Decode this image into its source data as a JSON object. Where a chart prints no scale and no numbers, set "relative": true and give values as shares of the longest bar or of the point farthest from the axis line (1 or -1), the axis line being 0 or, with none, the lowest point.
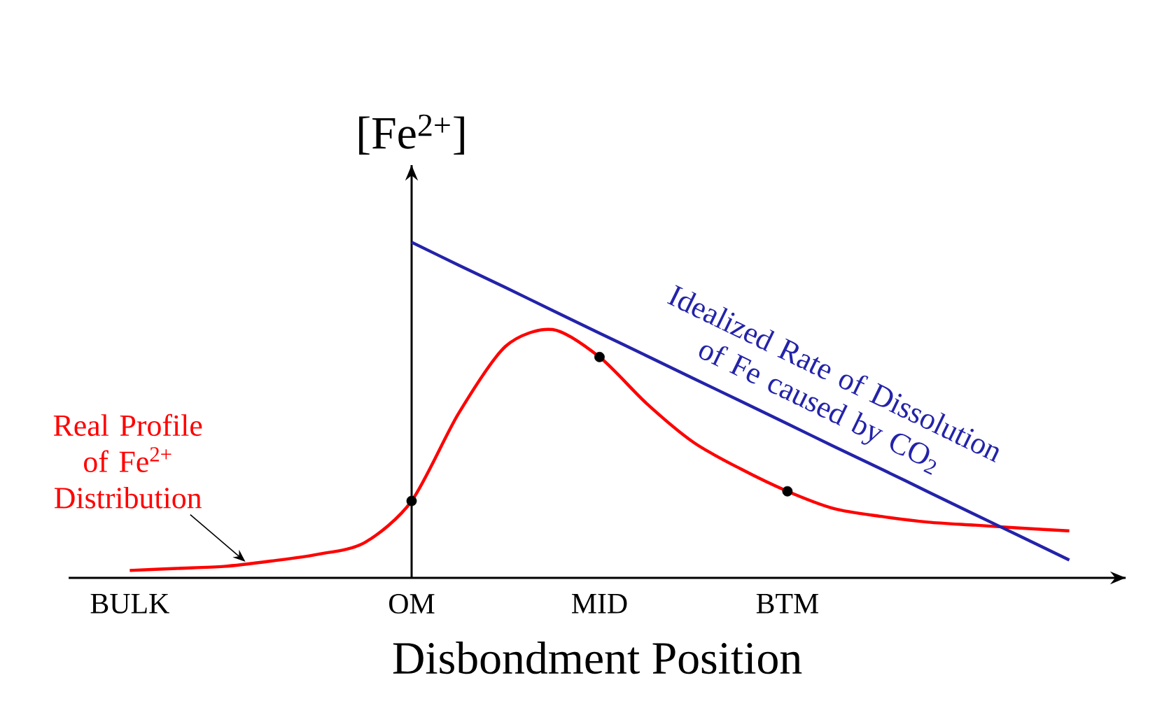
{
  "chart_data": {
    "type": "line",
    "relative": true,
    "xlabel": "Disbondment Position",
    "ylabel": "[Fe$^{2+}$]",
    "tick_labels": "x",
    "marker": "none",
    "line_style": "solid",
    "categories": [
      "BULK",
      null,
      null,
      null,
      null,
      null,
      "OM",
      null,
      null,
      null,
      "MID",
      null,
      null,
      null,
      "BTM",
      null,
      null,
      null,
      null,
      null,
      null
    ],
    "series": [
      {
        "name": "Real Profile of Fe$^{2+}$ Distribution",
        "color": "#ff0000",
        "values": [
          0.022,
          0.028,
          0.034,
          0.05,
          0.07,
          0.105,
          0.229,
          0.49,
          0.69,
          0.74,
          0.658,
          0.52,
          0.404,
          0.325,
          0.258,
          0.206,
          0.183,
          0.166,
          0.157,
          0.148,
          0.14
        ]
      },
      {
        "name": "Idealized Rate of Dissolution of Fe caused by CO$_{2}$",
        "color": "#2323aa",
        "values": [
          null,
          null,
          null,
          null,
          null,
          null,
          1.0,
          0.932,
          0.865,
          0.797,
          0.729,
          0.662,
          0.594,
          0.527,
          0.459,
          0.391,
          0.324,
          0.256,
          0.188,
          0.121,
          0.053
        ]
      },
      {
        "type": "scatter",
        "marker": "circle",
        "color": "#000000",
        "values": [
          null,
          null,
          null,
          null,
          null,
          null,
          0.229,
          null,
          null,
          null,
          0.658,
          null,
          null,
          null,
          0.258,
          null,
          null,
          null,
          null,
          null,
          null
        ]
      }
    ]
  }
}
